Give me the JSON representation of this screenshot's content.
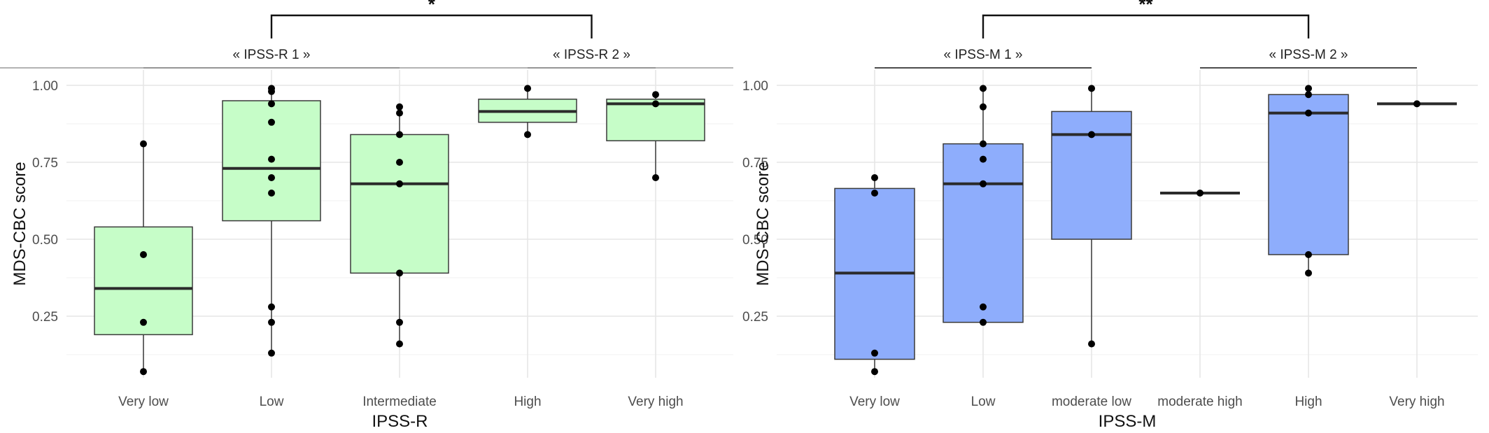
{
  "chart_data": [
    {
      "type": "box",
      "xlabel": "IPSS-R",
      "ylabel": "MDS-CBC score",
      "ylim": [
        0.05,
        1.05
      ],
      "yticks": [
        0.25,
        0.5,
        0.75,
        1.0
      ],
      "ytick_labels": [
        "0.25",
        "0.50",
        "0.75",
        "1.00"
      ],
      "box_color": "#c6fdc8",
      "categories": [
        "Very low",
        "Low",
        "Intermediate",
        "High",
        "Very high"
      ],
      "boxes": [
        {
          "q1": 0.19,
          "median": 0.34,
          "q3": 0.54,
          "whisker_low": 0.07,
          "whisker_high": 0.81,
          "points": [
            0.07,
            0.23,
            0.45,
            0.81
          ]
        },
        {
          "q1": 0.56,
          "median": 0.73,
          "q3": 0.95,
          "whisker_low": 0.13,
          "whisker_high": 0.99,
          "points": [
            0.13,
            0.23,
            0.28,
            0.65,
            0.7,
            0.76,
            0.88,
            0.94,
            0.98,
            0.99
          ]
        },
        {
          "q1": 0.39,
          "median": 0.68,
          "q3": 0.84,
          "whisker_low": 0.16,
          "whisker_high": 0.93,
          "points": [
            0.16,
            0.23,
            0.39,
            0.68,
            0.75,
            0.84,
            0.91,
            0.93
          ]
        },
        {
          "q1": 0.88,
          "median": 0.915,
          "q3": 0.955,
          "whisker_low": 0.84,
          "whisker_high": 0.99,
          "points": [
            0.84,
            0.99
          ]
        },
        {
          "q1": 0.82,
          "median": 0.94,
          "q3": 0.955,
          "whisker_low": 0.7,
          "whisker_high": 0.97,
          "points": [
            0.7,
            0.94,
            0.97
          ]
        }
      ],
      "groups": [
        {
          "label": "« IPSS-R 1 »",
          "from": 0,
          "to": 2
        },
        {
          "label": "« IPSS-R 2 »",
          "from": 3,
          "to": 4
        }
      ],
      "significance": "*"
    },
    {
      "type": "box",
      "xlabel": "IPSS-M",
      "ylabel": "MDS-CBC score",
      "ylim": [
        0.05,
        1.05
      ],
      "yticks": [
        0.25,
        0.5,
        0.75,
        1.0
      ],
      "ytick_labels": [
        "0.25",
        "0.50",
        "0.75",
        "1.00"
      ],
      "box_color": "#8eadfc",
      "categories": [
        "Very low",
        "Low",
        "moderate low",
        "moderate high",
        "High",
        "Very high"
      ],
      "boxes": [
        {
          "q1": 0.11,
          "median": 0.39,
          "q3": 0.665,
          "whisker_low": 0.07,
          "whisker_high": 0.7,
          "points": [
            0.07,
            0.13,
            0.65,
            0.7
          ]
        },
        {
          "q1": 0.23,
          "median": 0.68,
          "q3": 0.81,
          "whisker_low": 0.23,
          "whisker_high": 0.99,
          "points": [
            0.23,
            0.28,
            0.68,
            0.76,
            0.81,
            0.93,
            0.99
          ]
        },
        {
          "q1": 0.5,
          "median": 0.84,
          "q3": 0.915,
          "whisker_low": 0.16,
          "whisker_high": 0.99,
          "points": [
            0.16,
            0.84,
            0.99
          ]
        },
        {
          "q1": 0.65,
          "median": 0.65,
          "q3": 0.65,
          "whisker_low": 0.65,
          "whisker_high": 0.65,
          "points": [
            0.65
          ]
        },
        {
          "q1": 0.45,
          "median": 0.91,
          "q3": 0.97,
          "whisker_low": 0.39,
          "whisker_high": 0.99,
          "points": [
            0.39,
            0.45,
            0.91,
            0.97,
            0.99
          ]
        },
        {
          "q1": 0.94,
          "median": 0.94,
          "q3": 0.94,
          "whisker_low": 0.94,
          "whisker_high": 0.94,
          "points": [
            0.94
          ]
        }
      ],
      "groups": [
        {
          "label": "« IPSS-M 1 »",
          "from": 0,
          "to": 2
        },
        {
          "label": "« IPSS-M 2 »",
          "from": 3,
          "to": 5
        }
      ],
      "significance": "**"
    }
  ]
}
